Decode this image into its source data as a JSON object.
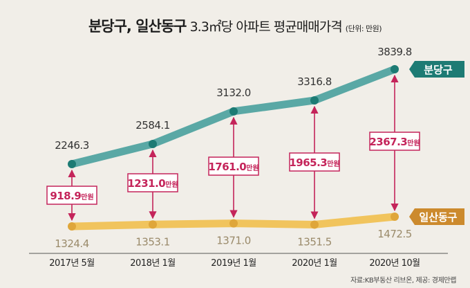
{
  "header": {
    "title_bold": "분당구, 일산동구",
    "title_rest": "3.3㎡당 아파트 평균매매가격",
    "unit": "(단위: 만원)"
  },
  "source": "자료:KB부동산 리브온, 제공: 경제만랩",
  "colors": {
    "background": "#f1eee8",
    "bundang": "#5aa8a5",
    "bundang_dot": "#1d7b74",
    "ilsan": "#f1c45d",
    "ilsan_dot": "#dfa63a",
    "ilsan_label": "#cc8a2d",
    "gap": "#c4245a",
    "text": "#333333"
  },
  "chart_data": {
    "type": "line",
    "title": "분당구, 일산동구 3.3㎡당 아파트 평균매매가격",
    "unit": "만원",
    "categories": [
      "2017년 5월",
      "2018년 1월",
      "2019년 1월",
      "2020년 1월",
      "2020년 10월"
    ],
    "series": [
      {
        "name": "분당구",
        "values": [
          2246.3,
          2584.1,
          3132.0,
          3316.8,
          3839.8
        ],
        "labels": [
          "2246.3",
          "2584.1",
          "3132.0",
          "3316.8",
          "3839.8"
        ]
      },
      {
        "name": "일산동구",
        "values": [
          1324.4,
          1353.1,
          1371.0,
          1351.5,
          1472.5
        ],
        "labels": [
          "1324.4",
          "1353.1",
          "1371.0",
          "1351.5",
          "1472.5"
        ]
      }
    ],
    "gaps": [
      {
        "value": "918.9",
        "unit": "만원"
      },
      {
        "value": "1231.0",
        "unit": "만원"
      },
      {
        "value": "1761.0",
        "unit": "만원"
      },
      {
        "value": "1965.3",
        "unit": "만원"
      },
      {
        "value": "2367.3",
        "unit": "만원"
      }
    ],
    "ylim": [
      800,
      4000
    ],
    "grid": false,
    "legend": "right, at line ends"
  }
}
